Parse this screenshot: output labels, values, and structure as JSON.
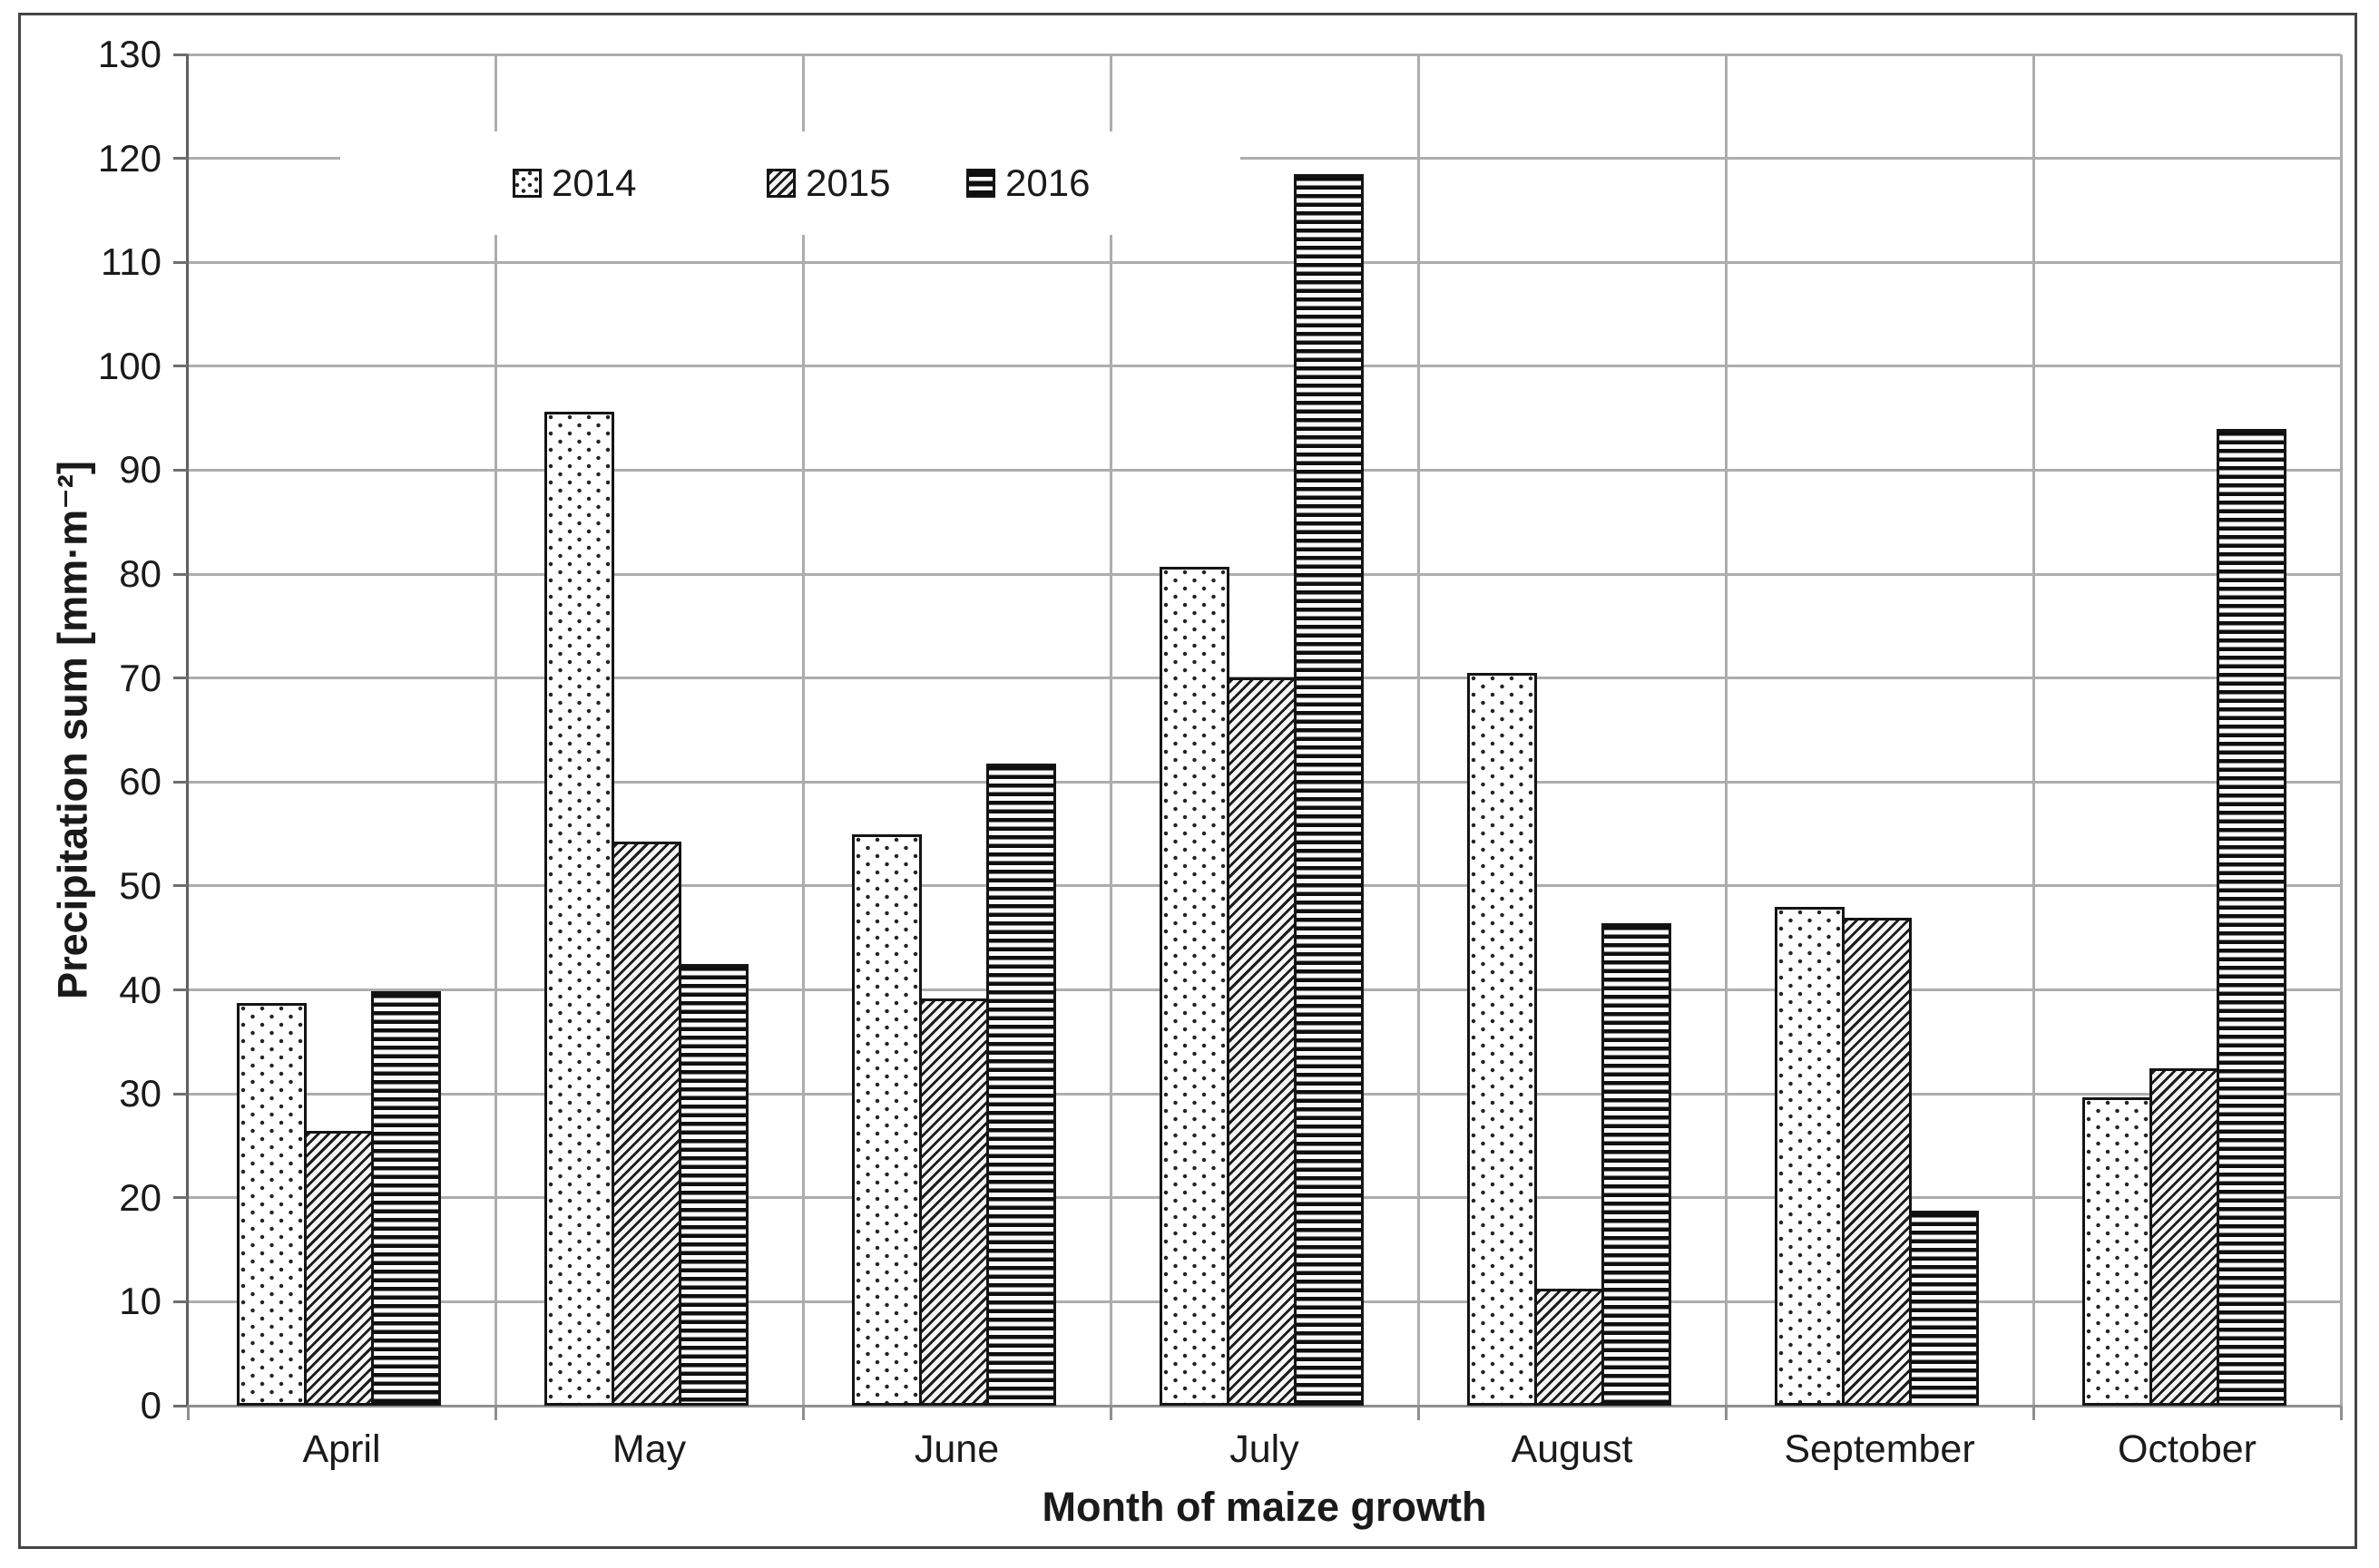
{
  "chart_data": {
    "type": "bar",
    "categories": [
      "April",
      "May",
      "June",
      "July",
      "August",
      "September",
      "October"
    ],
    "series": [
      {
        "name": "2014",
        "pattern": "dots",
        "values": [
          38.7,
          95.6,
          55.0,
          80.7,
          70.5,
          48.0,
          29.7
        ]
      },
      {
        "name": "2015",
        "pattern": "diagonal",
        "values": [
          26.4,
          54.3,
          39.2,
          70.1,
          11.3,
          46.9,
          32.5
        ]
      },
      {
        "name": "2016",
        "pattern": "hlines",
        "values": [
          39.9,
          42.5,
          61.8,
          118.5,
          46.4,
          18.8,
          94.0
        ]
      }
    ],
    "xlabel": "Month of maize growth",
    "ylabel": "Precipitation sum  [mm·m⁻²]",
    "ylim": [
      0,
      130
    ],
    "ytick_step": 10,
    "yticks": [
      0,
      10,
      20,
      30,
      40,
      50,
      60,
      70,
      80,
      90,
      100,
      110,
      120,
      130
    ],
    "grid": true,
    "legend_position": "inside-top-left"
  },
  "colors": {
    "background": "#ffffff",
    "gridline": "#adadad",
    "axis": "#6f6f6f",
    "bar_outline": "#141414",
    "text": "#1a1a1a",
    "figure_border": "#454545"
  }
}
